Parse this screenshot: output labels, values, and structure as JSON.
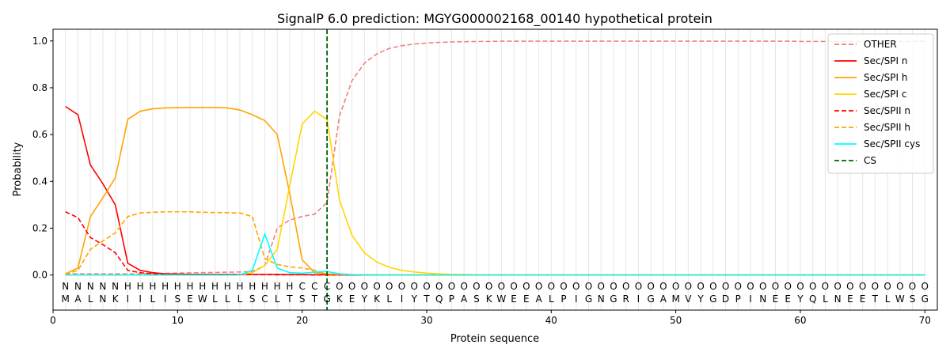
{
  "chart_data": {
    "type": "line",
    "title": "SignalP 6.0 prediction: MGYG000002168_00140 hypothetical protein",
    "xlabel": "Protein sequence",
    "ylabel": "Probability",
    "xlim": [
      0,
      71
    ],
    "ylim": [
      -0.15,
      1.05
    ],
    "x_ticks": [
      0,
      10,
      20,
      30,
      40,
      50,
      60,
      70
    ],
    "y_ticks": [
      "0.0",
      "0.2",
      "0.4",
      "0.6",
      "0.8",
      "1.0"
    ],
    "grid": "vertical lines at every residue",
    "legend_position": "top-right",
    "sequence": [
      "M",
      "A",
      "L",
      "N",
      "K",
      "I",
      "I",
      "L",
      "I",
      "S",
      "E",
      "W",
      "L",
      "L",
      "L",
      "S",
      "C",
      "L",
      "T",
      "S",
      "T",
      "G",
      "K",
      "E",
      "Y",
      "K",
      "L",
      "I",
      "Y",
      "T",
      "Q",
      "P",
      "A",
      "S",
      "K",
      "W",
      "E",
      "E",
      "A",
      "L",
      "P",
      "I",
      "G",
      "N",
      "G",
      "R",
      "I",
      "G",
      "A",
      "M",
      "V",
      "Y",
      "G",
      "D",
      "P",
      "I",
      "N",
      "E",
      "E",
      "Y",
      "Q",
      "L",
      "N",
      "E",
      "E",
      "T",
      "L",
      "W",
      "S",
      "G"
    ],
    "region_labels": [
      "N",
      "N",
      "N",
      "N",
      "N",
      "H",
      "H",
      "H",
      "H",
      "H",
      "H",
      "H",
      "H",
      "H",
      "H",
      "H",
      "H",
      "H",
      "H",
      "C",
      "C",
      "C",
      "O",
      "O",
      "O",
      "O",
      "O",
      "O",
      "O",
      "O",
      "O",
      "O",
      "O",
      "O",
      "O",
      "O",
      "O",
      "O",
      "O",
      "O",
      "O",
      "O",
      "O",
      "O",
      "O",
      "O",
      "O",
      "O",
      "O",
      "O",
      "O",
      "O",
      "O",
      "O",
      "O",
      "O",
      "O",
      "O",
      "O",
      "O",
      "O",
      "O",
      "O",
      "O",
      "O",
      "O",
      "O",
      "O",
      "O",
      "O"
    ],
    "region_colors": {
      "N": "#ff0000",
      "H": "#ffa500",
      "C": "#ffd700",
      "O": "#808080"
    },
    "cleavage_site": 22,
    "series": [
      {
        "name": "OTHER",
        "color": "#f08080",
        "dash": "dashed",
        "values": [
          0.005,
          0.005,
          0.005,
          0.005,
          0.005,
          0.005,
          0.005,
          0.006,
          0.007,
          0.008,
          0.009,
          0.01,
          0.011,
          0.012,
          0.013,
          0.015,
          0.04,
          0.2,
          0.235,
          0.25,
          0.26,
          0.31,
          0.68,
          0.83,
          0.905,
          0.945,
          0.968,
          0.98,
          0.987,
          0.991,
          0.994,
          0.996,
          0.997,
          0.998,
          0.998,
          0.999,
          0.999,
          0.999,
          0.999,
          0.999,
          0.999,
          0.999,
          0.999,
          0.999,
          0.999,
          0.999,
          0.999,
          0.999,
          0.999,
          0.999,
          0.999,
          0.999,
          0.999,
          0.999,
          0.999,
          0.999,
          0.999,
          0.999,
          0.999,
          0.998,
          0.998,
          0.998,
          0.998,
          0.998,
          0.998,
          0.998,
          0.998,
          0.998,
          0.998,
          0.998
        ]
      },
      {
        "name": "Sec/SPI n",
        "color": "#ff0000",
        "dash": "solid",
        "values": [
          0.72,
          0.685,
          0.47,
          0.39,
          0.3,
          0.05,
          0.02,
          0.01,
          0.005,
          0.004,
          0.003,
          0.003,
          0.003,
          0.003,
          0.003,
          0.003,
          0.003,
          0.003,
          0.002,
          0.002,
          0.001,
          0.001,
          0,
          0,
          0,
          0,
          0,
          0,
          0,
          0,
          0,
          0,
          0,
          0,
          0,
          0,
          0,
          0,
          0,
          0,
          0,
          0,
          0,
          0,
          0,
          0,
          0,
          0,
          0,
          0,
          0,
          0,
          0,
          0,
          0,
          0,
          0,
          0,
          0,
          0,
          0,
          0,
          0,
          0,
          0,
          0,
          0,
          0,
          0,
          0
        ]
      },
      {
        "name": "Sec/SPI h",
        "color": "#ffa500",
        "dash": "solid",
        "values": [
          0.005,
          0.03,
          0.25,
          0.33,
          0.415,
          0.665,
          0.7,
          0.71,
          0.714,
          0.715,
          0.716,
          0.716,
          0.716,
          0.714,
          0.705,
          0.685,
          0.66,
          0.6,
          0.35,
          0.065,
          0.01,
          0.005,
          0.002,
          0.001,
          0,
          0,
          0,
          0,
          0,
          0,
          0,
          0,
          0,
          0,
          0,
          0,
          0,
          0,
          0,
          0,
          0,
          0,
          0,
          0,
          0,
          0,
          0,
          0,
          0,
          0,
          0,
          0,
          0,
          0,
          0,
          0,
          0,
          0,
          0,
          0,
          0,
          0,
          0,
          0,
          0,
          0,
          0,
          0,
          0,
          0
        ]
      },
      {
        "name": "Sec/SPI c",
        "color": "#ffd700",
        "dash": "solid",
        "values": [
          0,
          0,
          0,
          0,
          0,
          0,
          0,
          0,
          0,
          0,
          0,
          0,
          0,
          0,
          0.002,
          0.01,
          0.04,
          0.11,
          0.38,
          0.645,
          0.7,
          0.665,
          0.32,
          0.17,
          0.095,
          0.055,
          0.033,
          0.02,
          0.013,
          0.008,
          0.005,
          0.003,
          0.002,
          0.001,
          0.001,
          0,
          0,
          0,
          0,
          0,
          0,
          0,
          0,
          0,
          0,
          0,
          0,
          0,
          0,
          0,
          0,
          0,
          0,
          0,
          0,
          0,
          0,
          0,
          0,
          0,
          0,
          0,
          0,
          0,
          0,
          0,
          0,
          0,
          0,
          0
        ]
      },
      {
        "name": "Sec/SPII n",
        "color": "#ff0000",
        "dash": "dashed",
        "values": [
          0.27,
          0.245,
          0.16,
          0.13,
          0.095,
          0.02,
          0.01,
          0.005,
          0.003,
          0.002,
          0.002,
          0.002,
          0.002,
          0.002,
          0.002,
          0.002,
          0.002,
          0.001,
          0.001,
          0.001,
          0,
          0,
          0,
          0,
          0,
          0,
          0,
          0,
          0,
          0,
          0,
          0,
          0,
          0,
          0,
          0,
          0,
          0,
          0,
          0,
          0,
          0,
          0,
          0,
          0,
          0,
          0,
          0,
          0,
          0,
          0,
          0,
          0,
          0,
          0,
          0,
          0,
          0,
          0,
          0,
          0,
          0,
          0,
          0,
          0,
          0,
          0,
          0,
          0,
          0
        ]
      },
      {
        "name": "Sec/SPII h",
        "color": "#ffa500",
        "dash": "dashed",
        "values": [
          0.003,
          0.02,
          0.11,
          0.145,
          0.18,
          0.25,
          0.265,
          0.268,
          0.27,
          0.27,
          0.27,
          0.268,
          0.267,
          0.266,
          0.265,
          0.25,
          0.07,
          0.045,
          0.035,
          0.03,
          0.02,
          0.005,
          0.002,
          0.001,
          0,
          0,
          0,
          0,
          0,
          0,
          0,
          0,
          0,
          0,
          0,
          0,
          0,
          0,
          0,
          0,
          0,
          0,
          0,
          0,
          0,
          0,
          0,
          0,
          0,
          0,
          0,
          0,
          0,
          0,
          0,
          0,
          0,
          0,
          0,
          0,
          0,
          0,
          0,
          0,
          0,
          0,
          0,
          0,
          0,
          0
        ]
      },
      {
        "name": "Sec/SPII cys",
        "color": "#00ffff",
        "dash": "solid",
        "values": [
          0,
          0,
          0,
          0,
          0,
          0,
          0,
          0,
          0,
          0,
          0,
          0,
          0,
          0,
          0,
          0.02,
          0.175,
          0.03,
          0.01,
          0.008,
          0.012,
          0.015,
          0.005,
          0.002,
          0.001,
          0,
          0,
          0,
          0,
          0,
          0,
          0,
          0,
          0,
          0,
          0,
          0,
          0,
          0,
          0,
          0,
          0,
          0,
          0,
          0,
          0,
          0,
          0,
          0,
          0,
          0,
          0,
          0,
          0,
          0,
          0,
          0,
          0,
          0,
          0,
          0,
          0,
          0,
          0,
          0,
          0,
          0,
          0,
          0,
          0
        ]
      }
    ],
    "cs_series": {
      "name": "CS",
      "color": "#006400",
      "dash": "dashed"
    }
  }
}
